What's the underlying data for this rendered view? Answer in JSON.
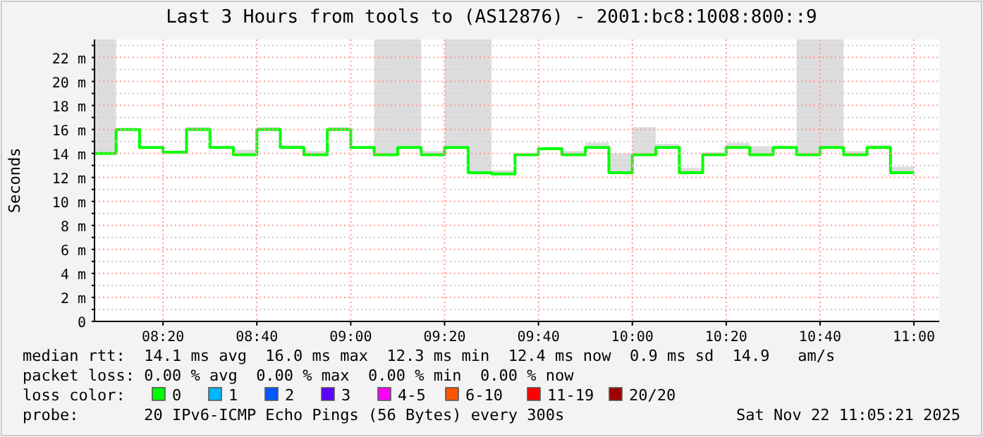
{
  "chart_data": {
    "type": "step",
    "title": "Last 3 Hours from tools to (AS12876) - 2001:bc8:1008:800::9",
    "ylabel": "Seconds",
    "x": [
      8.09,
      8.1667,
      8.25,
      8.3333,
      8.4167,
      8.5,
      8.5833,
      8.6667,
      8.75,
      8.8333,
      8.9167,
      9,
      9.0833,
      9.1667,
      9.25,
      9.3333,
      9.4167,
      9.5,
      9.5833,
      9.6667,
      9.75,
      9.8333,
      9.9167,
      10,
      10.0833,
      10.1667,
      10.25,
      10.3333,
      10.4167,
      10.5,
      10.5833,
      10.6667,
      10.75,
      10.8333,
      10.9167,
      11
    ],
    "series": [
      {
        "color": "#00ff00",
        "values": [
          14.0,
          16.0,
          14.5,
          14.1,
          16.0,
          14.5,
          13.9,
          16.0,
          14.5,
          13.9,
          16.0,
          14.5,
          13.9,
          14.5,
          13.9,
          14.5,
          12.4,
          12.3,
          13.9,
          14.4,
          13.9,
          14.5,
          12.4,
          13.9,
          14.5,
          12.4,
          13.9,
          14.5,
          13.9,
          14.5,
          13.9,
          14.5,
          13.9,
          14.5,
          12.4,
          12.4
        ],
        "lower": [
          14.0,
          16.0,
          14.5,
          14.1,
          16.0,
          14.5,
          13.9,
          16.0,
          14.5,
          13.9,
          16.0,
          14.5,
          13.9,
          14.5,
          13.9,
          14.5,
          12.4,
          12.3,
          13.9,
          14.4,
          13.9,
          14.5,
          12.4,
          13.9,
          14.5,
          12.3,
          13.9,
          14.5,
          13.9,
          14.5,
          13.9,
          14.5,
          13.9,
          14.5,
          12.4,
          12.4
        ],
        "upper": [
          23.5,
          16.1,
          14.6,
          14.2,
          16.2,
          14.6,
          14.3,
          16.2,
          14.7,
          14.2,
          16.2,
          14.6,
          23.5,
          23.5,
          14.2,
          23.5,
          23.5,
          12.6,
          14.0,
          14.5,
          14.2,
          14.9,
          14.0,
          16.2,
          14.8,
          12.8,
          14.1,
          14.9,
          14.6,
          14.6,
          23.5,
          23.5,
          14.2,
          14.7,
          12.9,
          12.9
        ]
      }
    ],
    "xlim": [
      8.09,
      11.09
    ],
    "xticks": [
      {
        "value": 8.3333,
        "label": "08:20"
      },
      {
        "value": 8.6667,
        "label": "08:40"
      },
      {
        "value": 9,
        "label": "09:00"
      },
      {
        "value": 9.3333,
        "label": "09:20"
      },
      {
        "value": 9.6667,
        "label": "09:40"
      },
      {
        "value": 10,
        "label": "10:00"
      },
      {
        "value": 10.3333,
        "label": "10:20"
      },
      {
        "value": 10.6667,
        "label": "10:40"
      },
      {
        "value": 11,
        "label": "11:00"
      }
    ],
    "ylim": [
      0,
      23.5
    ],
    "yticks": [
      {
        "value": 0,
        "label": "0"
      },
      {
        "value": 1,
        "label": null
      },
      {
        "value": 2,
        "label": "2 m"
      },
      {
        "value": 3,
        "label": null
      },
      {
        "value": 4,
        "label": "4 m"
      },
      {
        "value": 5,
        "label": null
      },
      {
        "value": 6,
        "label": "6 m"
      },
      {
        "value": 7,
        "label": null
      },
      {
        "value": 8,
        "label": "8 m"
      },
      {
        "value": 9,
        "label": null
      },
      {
        "value": 10,
        "label": "10 m"
      },
      {
        "value": 11,
        "label": null
      },
      {
        "value": 12,
        "label": "12 m"
      },
      {
        "value": 13,
        "label": null
      },
      {
        "value": 14,
        "label": "14 m"
      },
      {
        "value": 15,
        "label": null
      },
      {
        "value": 16,
        "label": "16 m"
      },
      {
        "value": 17,
        "label": null
      },
      {
        "value": 18,
        "label": "18 m"
      },
      {
        "value": 19,
        "label": null
      },
      {
        "value": 20,
        "label": "20 m"
      },
      {
        "value": 21,
        "label": null
      },
      {
        "value": 22,
        "label": "22 m"
      },
      {
        "value": 23,
        "label": null
      }
    ],
    "grid": true,
    "annotations": [
      "median rtt:  14.1 ms avg  16.0 ms max  12.3 ms min  12.4 ms now  0.9 ms sd  14.9   am/s",
      "packet loss: 0.00 % avg  0.00 % max  0.00 % min  0.00 % now",
      "loss color:",
      "0",
      "1",
      "2",
      "3",
      "4-5",
      "6-10",
      "11-19",
      "20/20",
      "probe:       20 IPv6-ICMP Echo Pings (56 Bytes) every 300s",
      "Sat Nov 22 11:05:21 2025"
    ]
  }
}
